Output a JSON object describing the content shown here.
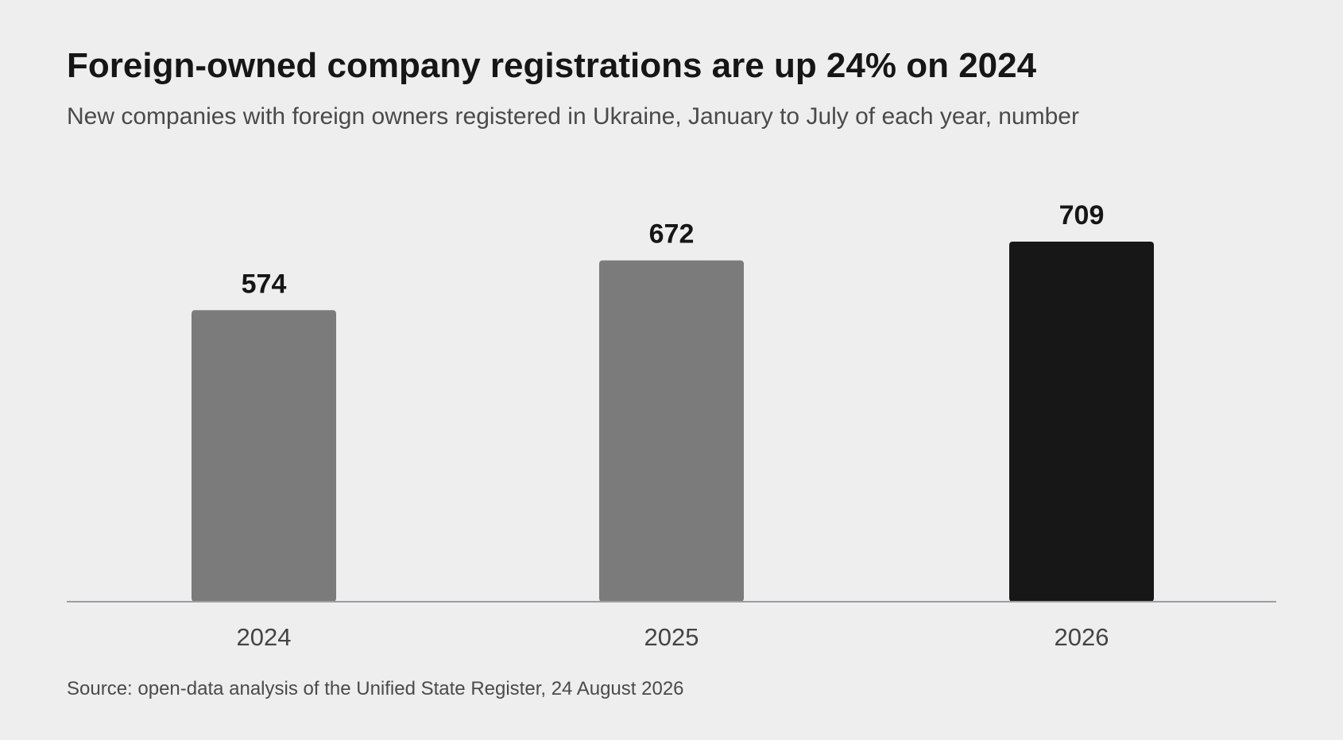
{
  "header": {
    "title": "Foreign-owned company registrations are up 24% on 2024",
    "subtitle": "New companies with foreign owners registered in Ukraine, January to July of each year, number"
  },
  "chart_data": {
    "type": "bar",
    "categories": [
      "2024",
      "2025",
      "2026"
    ],
    "values": [
      574,
      672,
      709
    ],
    "data_labels": [
      "574",
      "672",
      "709"
    ],
    "colors": [
      "#7a7b7a",
      "#7a7b7a",
      "#171717"
    ],
    "ylim": [
      0,
      709
    ],
    "grid": false,
    "legend": "none"
  },
  "footer": {
    "source": "Source: open-data analysis of the Unified State Register, 24 August 2026"
  }
}
